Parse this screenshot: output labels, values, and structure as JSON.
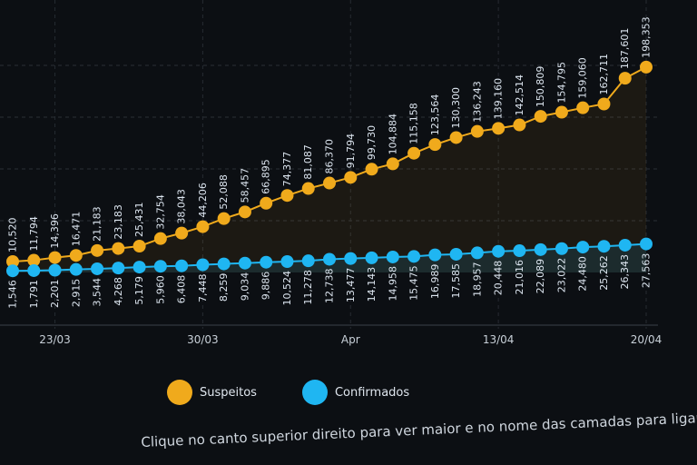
{
  "chart_data": {
    "type": "line",
    "title": "",
    "xlabel": "",
    "ylabel": "",
    "x": [
      "21/03",
      "22/03",
      "23/03",
      "24/03",
      "25/03",
      "26/03",
      "27/03",
      "28/03",
      "29/03",
      "30/03",
      "31/03",
      "01/04",
      "02/04",
      "03/04",
      "04/04",
      "05/04",
      "06/04",
      "07/04",
      "08/04",
      "09/04",
      "10/04",
      "11/04",
      "12/04",
      "13/04",
      "14/04",
      "15/04",
      "16/04",
      "17/04",
      "18/04",
      "19/04",
      "20/04"
    ],
    "x_ticks": [
      {
        "date": "23/03",
        "label": "23/03"
      },
      {
        "date": "30/03",
        "label": "30/03"
      },
      {
        "date": "06/04",
        "label": "Apr"
      },
      {
        "date": "13/04",
        "label": "13/04"
      },
      {
        "date": "20/04",
        "label": "20/04"
      }
    ],
    "ylim": [
      0,
      200000
    ],
    "grid": true,
    "legend_position": "bottom",
    "series": [
      {
        "name": "Suspeitos",
        "color": "#f0aa1c",
        "values": [
          10520,
          11794,
          14396,
          16471,
          21183,
          23183,
          25431,
          32754,
          38043,
          44206,
          52088,
          58457,
          66895,
          74377,
          81087,
          86370,
          91794,
          99730,
          104884,
          115158,
          123564,
          130300,
          136243,
          139160,
          142514,
          150809,
          154795,
          159060,
          162711,
          187601,
          198353
        ]
      },
      {
        "name": "Confirmados",
        "color": "#1fb6f2",
        "values": [
          1546,
          1791,
          2201,
          2915,
          3544,
          4268,
          5179,
          5960,
          6408,
          7448,
          8259,
          9034,
          9886,
          10524,
          11278,
          12738,
          13477,
          14143,
          14958,
          15475,
          16989,
          17585,
          18957,
          20448,
          21016,
          22089,
          23022,
          24480,
          25262,
          26343,
          27563
        ]
      }
    ]
  },
  "legend": {
    "items": [
      {
        "label": "Suspeitos"
      },
      {
        "label": "Confirmados"
      }
    ]
  },
  "footer_text": "Clique no canto superior direito para ver maior e no nome das camadas para ligar/desligar"
}
